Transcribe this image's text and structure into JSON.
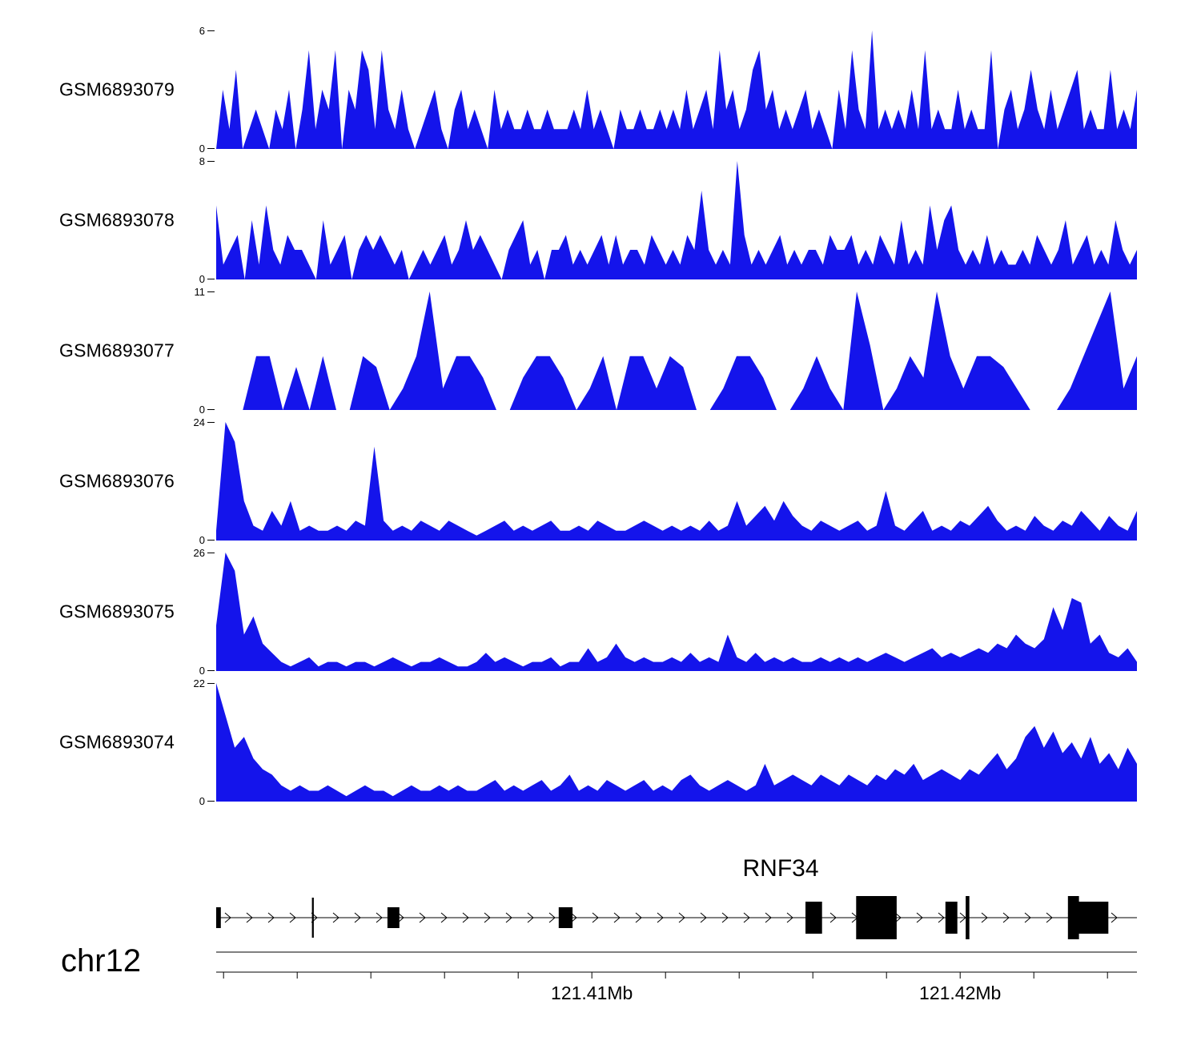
{
  "colors": {
    "track_fill": "#1414EB",
    "gene_color": "#000000",
    "axis_color": "#000000"
  },
  "labels": {
    "zero": "0"
  },
  "chart_data": {
    "type": "area",
    "title": "",
    "description": "Genome browser read-coverage view of six GEO samples over the RNF34 locus on chr12",
    "legend_position": "none",
    "grid": false,
    "region": {
      "chromosome": "chr12",
      "start_mb": 121.3998,
      "end_mb": 121.4248
    },
    "tracks": [
      {
        "label": "GSM6893079",
        "ymin": 0,
        "ymax": 6,
        "values": [
          0,
          3,
          1,
          4,
          0,
          1,
          2,
          1,
          0,
          2,
          1,
          3,
          0,
          2,
          5,
          1,
          3,
          2,
          5,
          0,
          3,
          2,
          5,
          4,
          1,
          5,
          2,
          1,
          3,
          1,
          0,
          1,
          2,
          3,
          1,
          0,
          2,
          3,
          1,
          2,
          1,
          0,
          3,
          1,
          2,
          1,
          1,
          2,
          1,
          1,
          2,
          1,
          1,
          1,
          2,
          1,
          3,
          1,
          2,
          1,
          0,
          2,
          1,
          1,
          2,
          1,
          1,
          2,
          1,
          2,
          1,
          3,
          1,
          2,
          3,
          1,
          5,
          2,
          3,
          1,
          2,
          4,
          5,
          2,
          3,
          1,
          2,
          1,
          2,
          3,
          1,
          2,
          1,
          0,
          3,
          1,
          5,
          2,
          1,
          6,
          1,
          2,
          1,
          2,
          1,
          3,
          1,
          5,
          1,
          2,
          1,
          1,
          3,
          1,
          2,
          1,
          1,
          5,
          0,
          2,
          3,
          1,
          2,
          4,
          2,
          1,
          3,
          1,
          2,
          3,
          4,
          1,
          2,
          1,
          1,
          4,
          1,
          2,
          1,
          3
        ]
      },
      {
        "label": "GSM6893078",
        "ymin": 0,
        "ymax": 8,
        "values": [
          5,
          1,
          2,
          3,
          0,
          4,
          1,
          5,
          2,
          1,
          3,
          2,
          2,
          1,
          0,
          4,
          1,
          2,
          3,
          0,
          2,
          3,
          2,
          3,
          2,
          1,
          2,
          0,
          1,
          2,
          1,
          2,
          3,
          1,
          2,
          4,
          2,
          3,
          2,
          1,
          0,
          2,
          3,
          4,
          1,
          2,
          0,
          2,
          2,
          3,
          1,
          2,
          1,
          2,
          3,
          1,
          3,
          1,
          2,
          2,
          1,
          3,
          2,
          1,
          2,
          1,
          3,
          2,
          6,
          2,
          1,
          2,
          1,
          8,
          3,
          1,
          2,
          1,
          2,
          3,
          1,
          2,
          1,
          2,
          2,
          1,
          3,
          2,
          2,
          3,
          1,
          2,
          1,
          3,
          2,
          1,
          4,
          1,
          2,
          1,
          5,
          2,
          4,
          5,
          2,
          1,
          2,
          1,
          3,
          1,
          2,
          1,
          1,
          2,
          1,
          3,
          2,
          1,
          2,
          4,
          1,
          2,
          3,
          1,
          2,
          1,
          4,
          2,
          1,
          2
        ]
      },
      {
        "label": "GSM6893077",
        "ymin": 0,
        "ymax": 11,
        "values": [
          0,
          0,
          0,
          5,
          5,
          0,
          4,
          0,
          5,
          0,
          0,
          5,
          4,
          0,
          2,
          5,
          11,
          2,
          5,
          5,
          3,
          0,
          0,
          3,
          5,
          5,
          3,
          0,
          2,
          5,
          0,
          5,
          5,
          2,
          5,
          4,
          0,
          0,
          2,
          5,
          5,
          3,
          0,
          0,
          2,
          5,
          2,
          0,
          11,
          6,
          0,
          2,
          5,
          3,
          11,
          5,
          2,
          5,
          5,
          4,
          2,
          0,
          0,
          0,
          2,
          5,
          8,
          11,
          2,
          5
        ]
      },
      {
        "label": "GSM6893076",
        "ymin": 0,
        "ymax": 24,
        "values": [
          2,
          24,
          20,
          8,
          3,
          2,
          6,
          3,
          8,
          2,
          3,
          2,
          2,
          3,
          2,
          4,
          3,
          19,
          4,
          2,
          3,
          2,
          4,
          3,
          2,
          4,
          3,
          2,
          1,
          2,
          3,
          4,
          2,
          3,
          2,
          3,
          4,
          2,
          2,
          3,
          2,
          4,
          3,
          2,
          2,
          3,
          4,
          3,
          2,
          3,
          2,
          3,
          2,
          4,
          2,
          3,
          8,
          3,
          5,
          7,
          4,
          8,
          5,
          3,
          2,
          4,
          3,
          2,
          3,
          4,
          2,
          3,
          10,
          3,
          2,
          4,
          6,
          2,
          3,
          2,
          4,
          3,
          5,
          7,
          4,
          2,
          3,
          2,
          5,
          3,
          2,
          4,
          3,
          6,
          4,
          2,
          5,
          3,
          2,
          6
        ]
      },
      {
        "label": "GSM6893075",
        "ymin": 0,
        "ymax": 26,
        "values": [
          10,
          26,
          22,
          8,
          12,
          6,
          4,
          2,
          1,
          2,
          3,
          1,
          2,
          2,
          1,
          2,
          2,
          1,
          2,
          3,
          2,
          1,
          2,
          2,
          3,
          2,
          1,
          1,
          2,
          4,
          2,
          3,
          2,
          1,
          2,
          2,
          3,
          1,
          2,
          2,
          5,
          2,
          3,
          6,
          3,
          2,
          3,
          2,
          2,
          3,
          2,
          4,
          2,
          3,
          2,
          8,
          3,
          2,
          4,
          2,
          3,
          2,
          3,
          2,
          2,
          3,
          2,
          3,
          2,
          3,
          2,
          3,
          4,
          3,
          2,
          3,
          4,
          5,
          3,
          4,
          3,
          4,
          5,
          4,
          6,
          5,
          8,
          6,
          5,
          7,
          14,
          9,
          16,
          15,
          6,
          8,
          4,
          3,
          5,
          2
        ]
      },
      {
        "label": "GSM6893074",
        "ymin": 0,
        "ymax": 22,
        "values": [
          22,
          16,
          10,
          12,
          8,
          6,
          5,
          3,
          2,
          3,
          2,
          2,
          3,
          2,
          1,
          2,
          3,
          2,
          2,
          1,
          2,
          3,
          2,
          2,
          3,
          2,
          3,
          2,
          2,
          3,
          4,
          2,
          3,
          2,
          3,
          4,
          2,
          3,
          5,
          2,
          3,
          2,
          4,
          3,
          2,
          3,
          4,
          2,
          3,
          2,
          4,
          5,
          3,
          2,
          3,
          4,
          3,
          2,
          3,
          7,
          3,
          4,
          5,
          4,
          3,
          5,
          4,
          3,
          5,
          4,
          3,
          5,
          4,
          6,
          5,
          7,
          4,
          5,
          6,
          5,
          4,
          6,
          5,
          7,
          9,
          6,
          8,
          12,
          14,
          10,
          13,
          9,
          11,
          8,
          12,
          7,
          9,
          6,
          10,
          7
        ]
      }
    ],
    "gene_track": {
      "gene_name": "RNF34",
      "strand": "forward",
      "exons": [
        {
          "x": 0.0,
          "w": 0.005,
          "h": "medium"
        },
        {
          "x": 0.104,
          "w": 0.002,
          "h": "tallthin"
        },
        {
          "x": 0.186,
          "w": 0.013,
          "h": "medium"
        },
        {
          "x": 0.372,
          "w": 0.015,
          "h": "medium"
        },
        {
          "x": 0.64,
          "w": 0.018,
          "h": "tall"
        },
        {
          "x": 0.695,
          "w": 0.044,
          "h": "xtall"
        },
        {
          "x": 0.792,
          "w": 0.013,
          "h": "tall"
        },
        {
          "x": 0.814,
          "w": 0.004,
          "h": "xtall"
        },
        {
          "x": 0.925,
          "w": 0.012,
          "h": "xtall"
        },
        {
          "x": 0.937,
          "w": 0.032,
          "h": "tall"
        }
      ]
    },
    "axis": {
      "chromosome_label": "chr12",
      "start_mb": 121.3998,
      "end_mb": 121.4248,
      "minor_tick_interval_mb": 0.002,
      "major_ticks": [
        {
          "label": "121.41Mb",
          "mb": 121.41
        },
        {
          "label": "121.42Mb",
          "mb": 121.42
        }
      ]
    }
  }
}
